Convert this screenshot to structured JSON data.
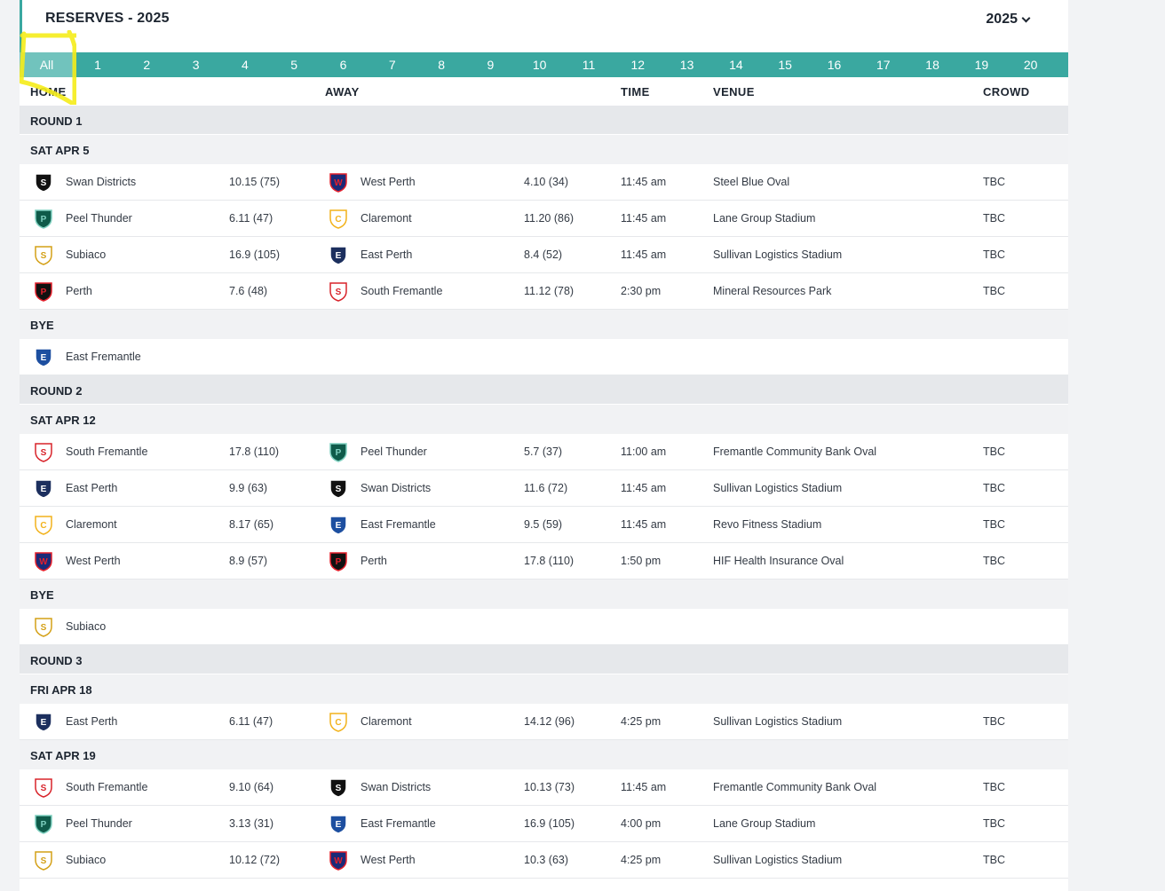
{
  "header": {
    "title": "RESERVES - 2025",
    "year": "2025"
  },
  "tabs": [
    "All",
    "1",
    "2",
    "3",
    "4",
    "5",
    "6",
    "7",
    "8",
    "9",
    "10",
    "11",
    "12",
    "13",
    "14",
    "15",
    "16",
    "17",
    "18",
    "19",
    "20"
  ],
  "columns": {
    "home": "HOME",
    "away": "AWAY",
    "time": "TIME",
    "venue": "VENUE",
    "crowd": "CROWD"
  },
  "colors": {
    "teal": "#3aa8a0",
    "active_tab": "#71c3bd",
    "highlight": "#f5ec1a"
  },
  "rounds": [
    {
      "label": "ROUND 1",
      "dates": [
        {
          "label": "SAT APR 5",
          "matches": [
            {
              "home": "Swan Districts",
              "home_score": "10.15 (75)",
              "away": "West Perth",
              "away_score": "4.10 (34)",
              "time": "11:45 am",
              "venue": "Steel Blue Oval",
              "crowd": "TBC"
            },
            {
              "home": "Peel Thunder",
              "home_score": "6.11 (47)",
              "away": "Claremont",
              "away_score": "11.20 (86)",
              "time": "11:45 am",
              "venue": "Lane Group Stadium",
              "crowd": "TBC"
            },
            {
              "home": "Subiaco",
              "home_score": "16.9 (105)",
              "away": "East Perth",
              "away_score": "8.4 (52)",
              "time": "11:45 am",
              "venue": "Sullivan Logistics Stadium",
              "crowd": "TBC"
            },
            {
              "home": "Perth",
              "home_score": "7.6 (48)",
              "away": "South Fremantle",
              "away_score": "11.12 (78)",
              "time": "2:30 pm",
              "venue": "Mineral Resources Park",
              "crowd": "TBC"
            }
          ]
        }
      ],
      "bye_label": "BYE",
      "bye": "East Fremantle"
    },
    {
      "label": "ROUND 2",
      "dates": [
        {
          "label": "SAT APR 12",
          "matches": [
            {
              "home": "South Fremantle",
              "home_score": "17.8 (110)",
              "away": "Peel Thunder",
              "away_score": "5.7 (37)",
              "time": "11:00 am",
              "venue": "Fremantle Community Bank Oval",
              "crowd": "TBC"
            },
            {
              "home": "East Perth",
              "home_score": "9.9 (63)",
              "away": "Swan Districts",
              "away_score": "11.6 (72)",
              "time": "11:45 am",
              "venue": "Sullivan Logistics Stadium",
              "crowd": "TBC"
            },
            {
              "home": "Claremont",
              "home_score": "8.17 (65)",
              "away": "East Fremantle",
              "away_score": "9.5 (59)",
              "time": "11:45 am",
              "venue": "Revo Fitness Stadium",
              "crowd": "TBC"
            },
            {
              "home": "West Perth",
              "home_score": "8.9 (57)",
              "away": "Perth",
              "away_score": "17.8 (110)",
              "time": "1:50 pm",
              "venue": "HIF Health Insurance Oval",
              "crowd": "TBC"
            }
          ]
        }
      ],
      "bye_label": "BYE",
      "bye": "Subiaco"
    },
    {
      "label": "ROUND 3",
      "dates": [
        {
          "label": "FRI APR 18",
          "matches": [
            {
              "home": "East Perth",
              "home_score": "6.11 (47)",
              "away": "Claremont",
              "away_score": "14.12 (96)",
              "time": "4:25 pm",
              "venue": "Sullivan Logistics Stadium",
              "crowd": "TBC"
            }
          ]
        },
        {
          "label": "SAT APR 19",
          "matches": [
            {
              "home": "South Fremantle",
              "home_score": "9.10 (64)",
              "away": "Swan Districts",
              "away_score": "10.13 (73)",
              "time": "11:45 am",
              "venue": "Fremantle Community Bank Oval",
              "crowd": "TBC"
            },
            {
              "home": "Peel Thunder",
              "home_score": "3.13 (31)",
              "away": "East Fremantle",
              "away_score": "16.9 (105)",
              "time": "4:00 pm",
              "venue": "Lane Group Stadium",
              "crowd": "TBC"
            },
            {
              "home": "Subiaco",
              "home_score": "10.12 (72)",
              "away": "West Perth",
              "away_score": "10.3 (63)",
              "time": "4:25 pm",
              "venue": "Sullivan Logistics Stadium",
              "crowd": "TBC"
            }
          ]
        }
      ]
    }
  ]
}
